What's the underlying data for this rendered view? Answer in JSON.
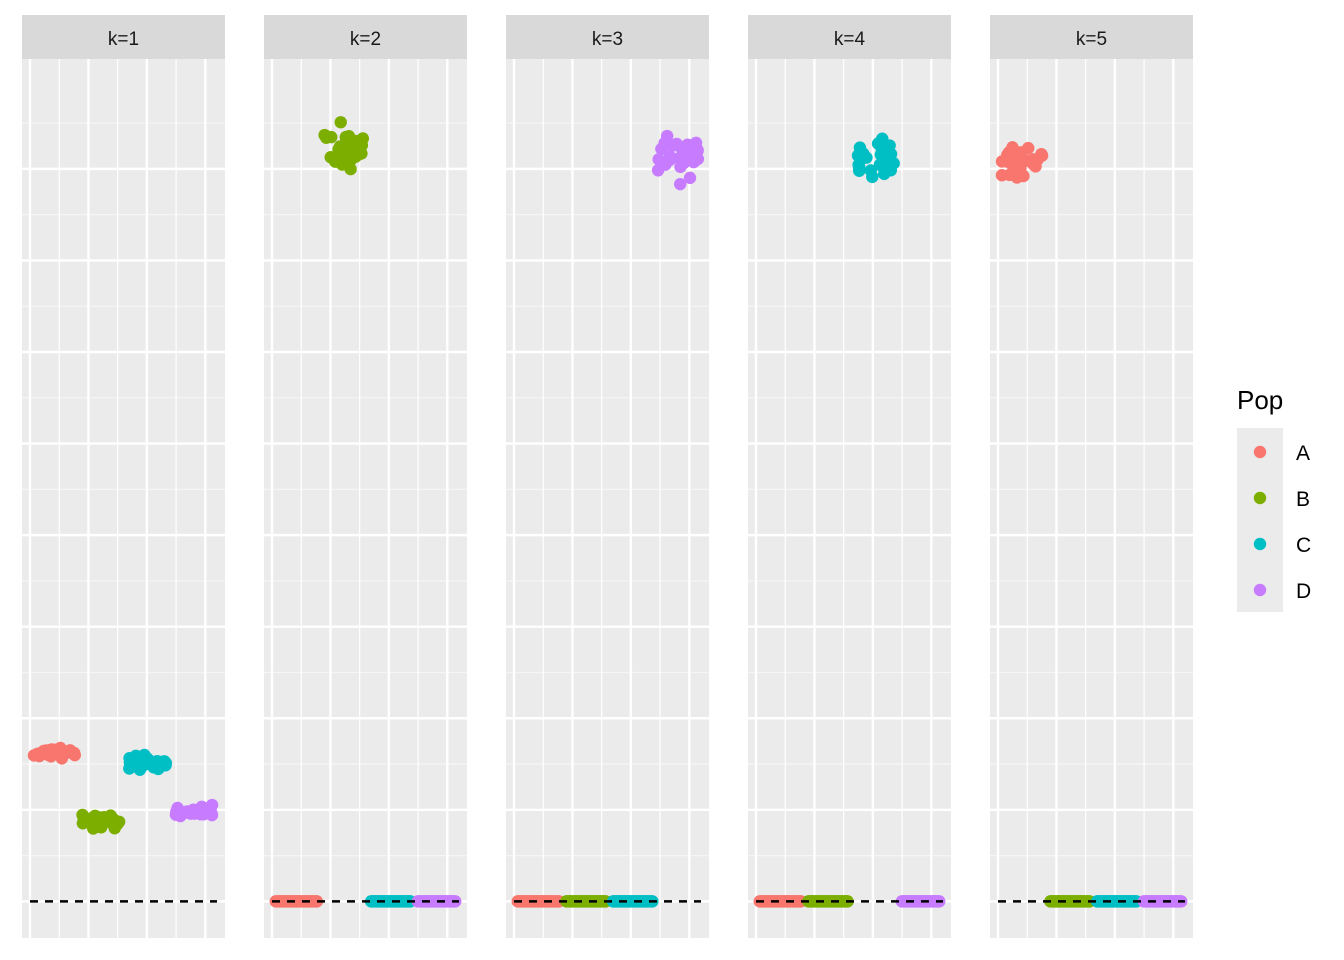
{
  "chart_data": {
    "type": "scatter",
    "facet_variable": "k",
    "facets": [
      "k=1",
      "k=2",
      "k=3",
      "k=4",
      "k=5"
    ],
    "xlabel": "",
    "ylabel": "",
    "reference_line": {
      "y": 0,
      "style": "dashed",
      "color": "#000000"
    },
    "ylim": [
      -0.04,
      0.92
    ],
    "legend": {
      "title": "Pop",
      "position": "right",
      "entries": [
        {
          "label": "A",
          "color": "#F8766D"
        },
        {
          "label": "B",
          "color": "#7CAE00"
        },
        {
          "label": "C",
          "color": "#00BFC4"
        },
        {
          "label": "D",
          "color": "#C77CFF"
        }
      ]
    },
    "panels": [
      {
        "facet": "k=1",
        "clusters": [
          {
            "pop": "A",
            "x_range": [
              0.0,
              0.26
            ],
            "y_center": 0.162,
            "y_spread": 0.005
          },
          {
            "pop": "B",
            "x_range": [
              0.26,
              0.51
            ],
            "y_center": 0.087,
            "y_spread": 0.006
          },
          {
            "pop": "C",
            "x_range": [
              0.51,
              0.76
            ],
            "y_center": 0.15,
            "y_spread": 0.006
          },
          {
            "pop": "D",
            "x_range": [
              0.76,
              1.0
            ],
            "y_center": 0.099,
            "y_spread": 0.004
          }
        ]
      },
      {
        "facet": "k=2",
        "clusters": [
          {
            "pop": "A",
            "x_range": [
              0.0,
              0.26
            ],
            "y_center": 0.0,
            "y_spread": 0.0
          },
          {
            "pop": "B",
            "x_range": [
              0.26,
              0.51
            ],
            "y_center": 0.823,
            "y_spread": 0.018
          },
          {
            "pop": "C",
            "x_range": [
              0.51,
              0.76
            ],
            "y_center": 0.0,
            "y_spread": 0.0
          },
          {
            "pop": "D",
            "x_range": [
              0.76,
              1.0
            ],
            "y_center": 0.0,
            "y_spread": 0.0
          }
        ]
      },
      {
        "facet": "k=3",
        "clusters": [
          {
            "pop": "A",
            "x_range": [
              0.0,
              0.26
            ],
            "y_center": 0.0,
            "y_spread": 0.0
          },
          {
            "pop": "B",
            "x_range": [
              0.26,
              0.51
            ],
            "y_center": 0.0,
            "y_spread": 0.0
          },
          {
            "pop": "C",
            "x_range": [
              0.51,
              0.76
            ],
            "y_center": 0.0,
            "y_spread": 0.0
          },
          {
            "pop": "D",
            "x_range": [
              0.76,
              1.0
            ],
            "y_center": 0.818,
            "y_spread": 0.016
          }
        ]
      },
      {
        "facet": "k=4",
        "clusters": [
          {
            "pop": "A",
            "x_range": [
              0.0,
              0.26
            ],
            "y_center": 0.0,
            "y_spread": 0.0
          },
          {
            "pop": "B",
            "x_range": [
              0.26,
              0.51
            ],
            "y_center": 0.0,
            "y_spread": 0.0
          },
          {
            "pop": "C",
            "x_range": [
              0.51,
              0.76
            ],
            "y_center": 0.809,
            "y_spread": 0.018
          },
          {
            "pop": "D",
            "x_range": [
              0.76,
              1.0
            ],
            "y_center": 0.0,
            "y_spread": 0.0
          }
        ]
      },
      {
        "facet": "k=5",
        "clusters": [
          {
            "pop": "A",
            "x_range": [
              0.0,
              0.26
            ],
            "y_center": 0.81,
            "y_spread": 0.014
          },
          {
            "pop": "B",
            "x_range": [
              0.26,
              0.51
            ],
            "y_center": 0.0,
            "y_spread": 0.0
          },
          {
            "pop": "C",
            "x_range": [
              0.51,
              0.76
            ],
            "y_center": 0.0,
            "y_spread": 0.0
          },
          {
            "pop": "D",
            "x_range": [
              0.76,
              1.0
            ],
            "y_center": 0.0,
            "y_spread": 0.0
          }
        ]
      }
    ],
    "points_per_cluster": 30
  }
}
